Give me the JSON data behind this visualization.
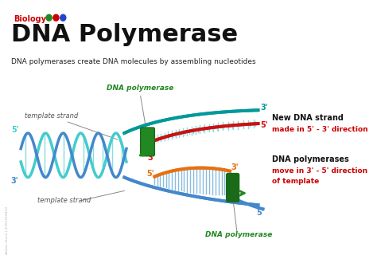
{
  "title": "DNA Polymerase",
  "subtitle": "Biology",
  "description": "DNA polymerases create DNA molecules by assembling nucleotides",
  "bg_color": "#ffffff",
  "title_color": "#111111",
  "subtitle_color": "#cc0000",
  "description_color": "#222222",
  "teal_dark": "#009999",
  "teal_light": "#44cccc",
  "blue_strand": "#4488cc",
  "red_strand": "#cc1111",
  "orange_strand": "#e87010",
  "green_enzyme": "#228822",
  "green_enzyme_dark": "#1a6a1a",
  "annotation_color": "#111111",
  "red_text": "#cc0000",
  "green_text": "#228822",
  "gray_line": "#888888",
  "rung_color_upper": "#88dddd",
  "rung_color_lower": "#88bbdd",
  "watermark": "#bbbbbb",
  "dots": [
    "#228822",
    "#cc0000",
    "#2244cc"
  ],
  "right1_bold": "New DNA strand",
  "right1_red": "made in 5' - 3' direction",
  "right2_bold": "DNA polymerases",
  "right2_red": "move in 3' - 5' direction",
  "right2_red2": "of template"
}
